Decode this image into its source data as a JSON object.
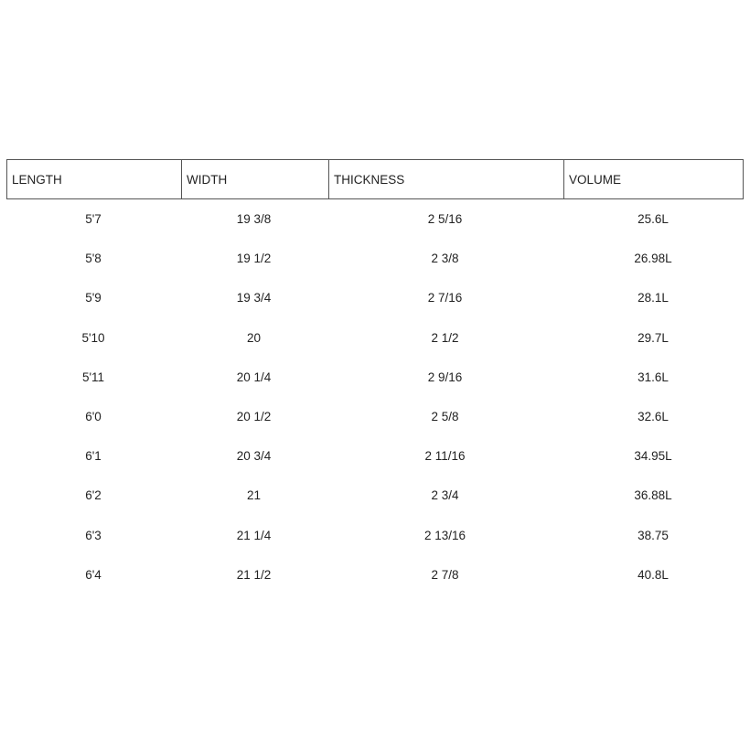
{
  "table": {
    "header": [
      "LENGTH",
      "WIDTH",
      "THICKNESS",
      "VOLUME"
    ],
    "rows": [
      [
        "5'7",
        "19 3/8",
        "2 5/16",
        "25.6L"
      ],
      [
        "5'8",
        "19 1/2",
        "2 3/8",
        "26.98L"
      ],
      [
        "5'9",
        "19 3/4",
        "2 7/16",
        "28.1L"
      ],
      [
        "5'10",
        "20",
        "2 1/2",
        "29.7L"
      ],
      [
        "5'11",
        "20 1/4",
        "2 9/16",
        "31.6L"
      ],
      [
        "6'0",
        "20 1/2",
        "2 5/8",
        "32.6L"
      ],
      [
        "6'1",
        "20 3/4",
        "2 11/16",
        "34.95L"
      ],
      [
        "6'2",
        "21",
        "2 3/4",
        "36.88L"
      ],
      [
        "6'3",
        "21 1/4",
        "2 13/16",
        "38.75"
      ],
      [
        "6'4",
        "21 1/2",
        "2 7/8",
        "40.8L"
      ]
    ]
  }
}
